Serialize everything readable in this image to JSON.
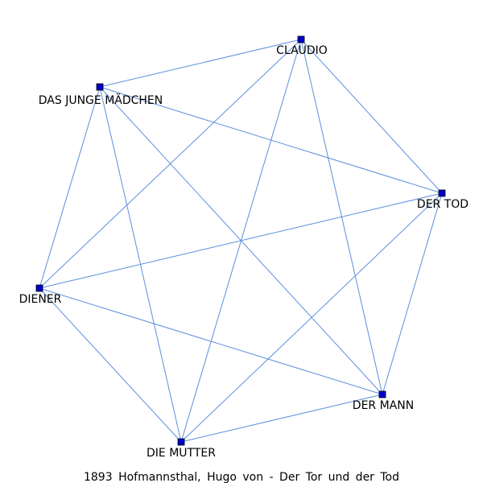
{
  "caption": "1893 Hofmannsthal, Hugo von - Der Tor und der Tod",
  "colors": {
    "edge": "#5b8fdc",
    "node_fill": "#0000cc",
    "node_stroke": "#000000",
    "label": "#000000"
  },
  "nodes": [
    {
      "id": "claudio",
      "label": "CLAUDIO"
    },
    {
      "id": "das-junge-maedchen",
      "label": "DAS JUNGE MÄDCHEN"
    },
    {
      "id": "der-tod",
      "label": "DER TOD"
    },
    {
      "id": "diener",
      "label": "DIENER"
    },
    {
      "id": "der-mann",
      "label": "DER MANN"
    },
    {
      "id": "die-mutter",
      "label": "DIE MUTTER"
    }
  ],
  "edges": [
    [
      "claudio",
      "das-junge-maedchen"
    ],
    [
      "claudio",
      "der-tod"
    ],
    [
      "claudio",
      "diener"
    ],
    [
      "claudio",
      "der-mann"
    ],
    [
      "claudio",
      "die-mutter"
    ],
    [
      "das-junge-maedchen",
      "der-tod"
    ],
    [
      "das-junge-maedchen",
      "diener"
    ],
    [
      "das-junge-maedchen",
      "der-mann"
    ],
    [
      "das-junge-maedchen",
      "die-mutter"
    ],
    [
      "der-tod",
      "diener"
    ],
    [
      "der-tod",
      "der-mann"
    ],
    [
      "der-tod",
      "die-mutter"
    ],
    [
      "diener",
      "der-mann"
    ],
    [
      "diener",
      "die-mutter"
    ],
    [
      "der-mann",
      "die-mutter"
    ]
  ]
}
